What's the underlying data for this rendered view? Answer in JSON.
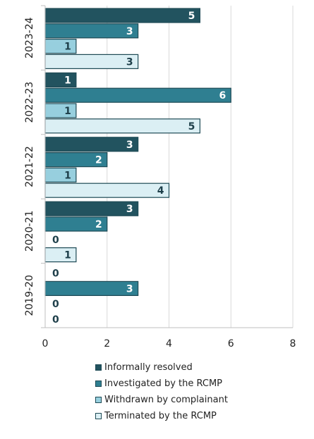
{
  "chart_data": {
    "type": "bar",
    "orientation": "horizontal",
    "categories": [
      "2023-24",
      "2022-23",
      "2021-22",
      "2020-21",
      "2019-20"
    ],
    "series": [
      {
        "name": "Informally resolved",
        "values": [
          5,
          1,
          3,
          3,
          0
        ],
        "color": "#22535f",
        "label_color": "#ffffff"
      },
      {
        "name": "Investigated by the RCMP",
        "values": [
          3,
          6,
          2,
          2,
          3
        ],
        "color": "#2f7f91",
        "label_color": "#ffffff"
      },
      {
        "name": "Withdrawn by complainant",
        "values": [
          1,
          1,
          1,
          0,
          0
        ],
        "color": "#97cfde",
        "label_color": "#1e3f4a"
      },
      {
        "name": "Terminated by the RCMP",
        "values": [
          3,
          5,
          4,
          1,
          0
        ],
        "color": "#dbeff4",
        "label_color": "#1e3f4a"
      }
    ],
    "xlim": [
      0,
      8
    ],
    "xticks": [
      "0",
      "2",
      "4",
      "6",
      "8"
    ],
    "grid": true,
    "legend_position": "bottom"
  }
}
